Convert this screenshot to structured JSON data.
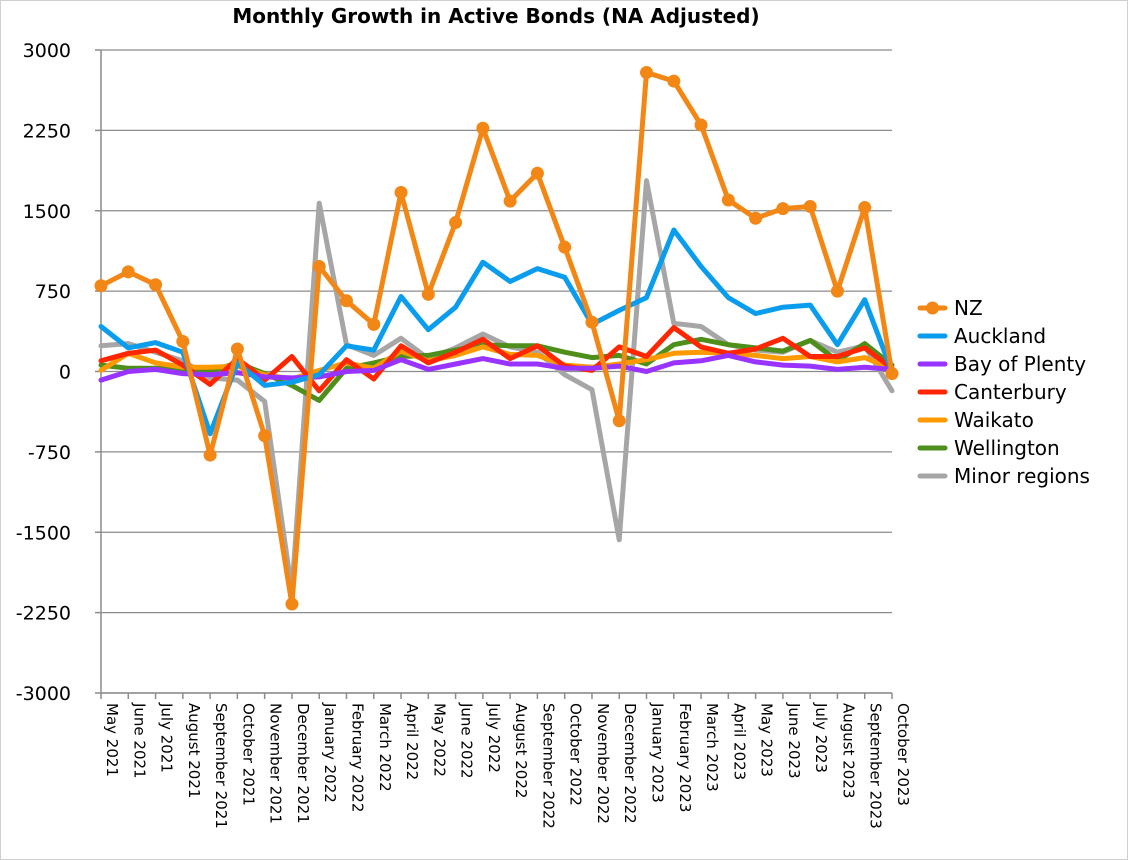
{
  "chart_data": {
    "type": "line",
    "title": "Monthly Growth in Active Bonds  (NA Adjusted)",
    "xlabel": "",
    "ylabel": "",
    "ylim": [
      -3000,
      3000
    ],
    "yticks": [
      "3000",
      "2250",
      "1500",
      "750",
      "0",
      "-750",
      "-1500",
      "-2250",
      "-3000"
    ],
    "ytick_values": [
      3000,
      2250,
      1500,
      750,
      0,
      -750,
      -1500,
      -2250,
      -3000
    ],
    "categories": [
      "May 2021",
      "June 2021",
      "July 2021",
      "August 2021",
      "September 2021",
      "October 2021",
      "November 2021",
      "December 2021",
      "January 2022",
      "February 2022",
      "March 2022",
      "April 2022",
      "May 2022",
      "June 2022",
      "July 2022",
      "August 2022",
      "September 2022",
      "October 2022",
      "November 2022",
      "December 2022",
      "January 2023",
      "February 2023",
      "March 2023",
      "April 2023",
      "May 2023",
      "June 2023",
      "July 2023",
      "August 2023",
      "September 2023",
      "October 2023"
    ],
    "legend_position": "right",
    "series": [
      {
        "name": "Minor regions",
        "color": "#a6a6a6",
        "markers": false,
        "values": [
          240,
          260,
          180,
          100,
          -60,
          -80,
          -280,
          -2050,
          1570,
          250,
          150,
          310,
          120,
          220,
          350,
          230,
          180,
          -30,
          -170,
          -1570,
          1780,
          450,
          420,
          250,
          200,
          180,
          290,
          180,
          240,
          -180
        ]
      },
      {
        "name": "Wellington",
        "color": "#4e8f1c",
        "markers": false,
        "values": [
          60,
          30,
          30,
          20,
          0,
          80,
          -20,
          -130,
          -270,
          30,
          80,
          140,
          150,
          200,
          250,
          240,
          240,
          180,
          130,
          150,
          70,
          250,
          300,
          250,
          220,
          190,
          290,
          100,
          260,
          60
        ]
      },
      {
        "name": "Waikato",
        "color": "#ff9900",
        "markers": false,
        "values": [
          10,
          170,
          80,
          40,
          40,
          50,
          -30,
          -70,
          10,
          80,
          30,
          190,
          100,
          150,
          230,
          160,
          150,
          60,
          40,
          70,
          110,
          170,
          180,
          170,
          150,
          120,
          140,
          90,
          130,
          20
        ]
      },
      {
        "name": "Canterbury",
        "color": "#ff2600",
        "markers": false,
        "values": [
          100,
          170,
          200,
          60,
          -120,
          120,
          -80,
          140,
          -180,
          110,
          -70,
          240,
          80,
          180,
          300,
          120,
          240,
          50,
          10,
          230,
          140,
          410,
          230,
          170,
          210,
          310,
          140,
          140,
          220,
          30
        ]
      },
      {
        "name": "Bay of Plenty",
        "color": "#9933ff",
        "markers": false,
        "values": [
          -80,
          0,
          20,
          -20,
          -30,
          -10,
          -50,
          -60,
          -50,
          0,
          10,
          110,
          20,
          70,
          120,
          70,
          70,
          30,
          30,
          50,
          0,
          80,
          100,
          150,
          90,
          60,
          50,
          20,
          40,
          20
        ]
      },
      {
        "name": "Auckland",
        "color": "#0a9ded",
        "markers": false,
        "values": [
          420,
          220,
          270,
          180,
          -580,
          80,
          -130,
          -100,
          -30,
          240,
          200,
          700,
          390,
          600,
          1020,
          840,
          960,
          880,
          440,
          570,
          690,
          1320,
          980,
          690,
          540,
          600,
          620,
          250,
          670,
          0
        ]
      },
      {
        "name": "NZ",
        "color": "#f38715",
        "markers": true,
        "values": [
          800,
          930,
          810,
          280,
          -780,
          210,
          -600,
          -2170,
          980,
          660,
          440,
          1670,
          720,
          1390,
          2270,
          1590,
          1850,
          1160,
          460,
          -460,
          2790,
          2710,
          2300,
          1600,
          1430,
          1520,
          1540,
          750,
          1530,
          -20
        ]
      }
    ],
    "legend_order": [
      "NZ",
      "Auckland",
      "Bay of Plenty",
      "Canterbury",
      "Waikato",
      "Wellington",
      "Minor regions"
    ]
  }
}
